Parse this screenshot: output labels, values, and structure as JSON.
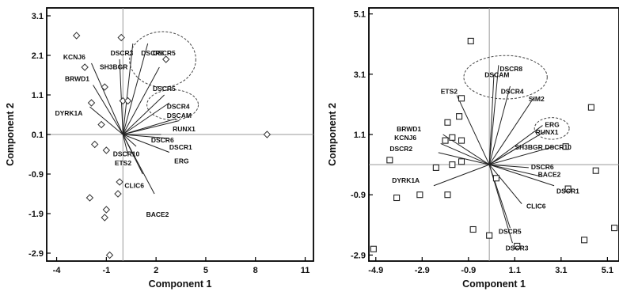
{
  "chart_data": [
    {
      "type": "scatter",
      "xlabel": "Component 1",
      "ylabel": "Component 2",
      "xlim": [
        -4.6,
        11.5
      ],
      "ylim": [
        -3.1,
        3.3
      ],
      "xticks": [
        -4,
        -1,
        2,
        5,
        8,
        11
      ],
      "yticks": [
        -2.9,
        -1.9,
        -0.9,
        0.1,
        1.1,
        2.1,
        3.1
      ],
      "marker": "diamond",
      "reference_lines": {
        "x": 0,
        "y": 0.1
      },
      "points": [
        {
          "x": -2.8,
          "y": 2.6
        },
        {
          "x": -2.3,
          "y": 1.8
        },
        {
          "x": -1.1,
          "y": 1.3
        },
        {
          "x": -1.9,
          "y": 0.9
        },
        {
          "x": -0.1,
          "y": 2.55
        },
        {
          "x": 0,
          "y": 0.95
        },
        {
          "x": 0.3,
          "y": 0.95
        },
        {
          "x": 2.6,
          "y": 2.0
        },
        {
          "x": -1.3,
          "y": 0.35
        },
        {
          "x": -1.7,
          "y": -0.15
        },
        {
          "x": -1.0,
          "y": -0.3
        },
        {
          "x": -2.0,
          "y": -1.5
        },
        {
          "x": -1.0,
          "y": -1.8
        },
        {
          "x": -1.1,
          "y": -2.0
        },
        {
          "x": -0.3,
          "y": -1.4
        },
        {
          "x": -0.2,
          "y": -1.1
        },
        {
          "x": -0.8,
          "y": -2.95
        },
        {
          "x": 8.7,
          "y": 0.1
        }
      ],
      "vectors": [
        {
          "label": "KCNJ6",
          "x": -1.9,
          "y": 1.8
        },
        {
          "label": "BRWD1",
          "x": -1.8,
          "y": 1.25
        },
        {
          "label": "DYRK1A",
          "x": -2.0,
          "y": 0.7
        },
        {
          "label": "SH3BGR",
          "x": -0.2,
          "y": 1.9
        },
        {
          "label": "DSCR3",
          "x": 0.6,
          "y": 2.3
        },
        {
          "label": "DSCR8",
          "x": 1.5,
          "y": 2.3
        },
        {
          "label": "DSCR5",
          "x": 2.2,
          "y": 1.7
        },
        {
          "label": "DSCR4",
          "x": 2.5,
          "y": 1.0
        },
        {
          "label": "DSCAM",
          "x": 2.8,
          "y": 0.8
        },
        {
          "label": "RUNX1",
          "x": 3.2,
          "y": 0.4
        },
        {
          "label": "SIM2",
          "x": 3.4,
          "y": 0.35
        },
        {
          "label": "DSCR6",
          "x": 2.3,
          "y": 0.0
        },
        {
          "label": "DSCR1",
          "x": 2.8,
          "y": -0.1
        },
        {
          "label": "ERG",
          "x": 2.8,
          "y": -0.45
        },
        {
          "label": "DSCR10",
          "x": 0.8,
          "y": -0.3
        },
        {
          "label": "ETS2",
          "x": 0.3,
          "y": -0.5
        },
        {
          "label": "CLIC6",
          "x": 1.2,
          "y": -1.0
        },
        {
          "label": "BACE2",
          "x": 1.9,
          "y": -1.5
        }
      ],
      "labels": [
        {
          "text": "DSCR3",
          "x": -0.75,
          "y": 2.1
        },
        {
          "text": "DSCR8",
          "x": 1.1,
          "y": 2.1
        },
        {
          "text": "DSCR5",
          "x": 1.8,
          "y": 2.1
        },
        {
          "text": "SH3BGR",
          "x": -1.4,
          "y": 1.75
        },
        {
          "text": "KCNJ6",
          "x": -3.6,
          "y": 2.0
        },
        {
          "text": "BRWD1",
          "x": -3.5,
          "y": 1.45
        },
        {
          "text": "DSCR5",
          "x": 1.8,
          "y": 1.2
        },
        {
          "text": "DSCR4",
          "x": 2.65,
          "y": 0.75
        },
        {
          "text": "DSCAM",
          "x": 2.65,
          "y": 0.52
        },
        {
          "text": "DYRK1A",
          "x": -4.1,
          "y": 0.58
        },
        {
          "text": "RUNX1",
          "x": 3.0,
          "y": 0.18
        },
        {
          "text": "DSCR6",
          "x": 1.7,
          "y": -0.1
        },
        {
          "text": "DSCR1",
          "x": 2.8,
          "y": -0.28
        },
        {
          "text": "DSCR10",
          "x": -0.6,
          "y": -0.45
        },
        {
          "text": "ERG",
          "x": 3.1,
          "y": -0.63
        },
        {
          "text": "ETS2",
          "x": -0.5,
          "y": -0.68
        },
        {
          "text": "CLIC6",
          "x": 0.1,
          "y": -1.25
        },
        {
          "text": "BACE2",
          "x": 1.4,
          "y": -1.98
        }
      ],
      "ellipses": [
        {
          "cx": 2.4,
          "cy": 2.0,
          "rx": 2.0,
          "ry": 0.7
        },
        {
          "cx": 3.0,
          "cy": 0.85,
          "rx": 1.55,
          "ry": 0.38
        }
      ]
    },
    {
      "type": "scatter",
      "xlabel": "Component 1",
      "ylabel": "Component 2",
      "xlim": [
        -5.2,
        5.6
      ],
      "ylim": [
        -3.1,
        5.3
      ],
      "xticks": [
        -4.9,
        -2.9,
        -0.9,
        1.1,
        3.1,
        5.1
      ],
      "yticks": [
        -2.9,
        -0.9,
        1.1,
        3.1,
        5.1
      ],
      "marker": "square",
      "reference_lines": {
        "x": 0,
        "y": 0.1
      },
      "points": [
        {
          "x": -0.8,
          "y": 4.2
        },
        {
          "x": -1.2,
          "y": 2.3
        },
        {
          "x": -1.3,
          "y": 1.7
        },
        {
          "x": -1.8,
          "y": 1.5
        },
        {
          "x": -1.6,
          "y": 1.0
        },
        {
          "x": -1.9,
          "y": 0.9
        },
        {
          "x": -1.2,
          "y": 0.9
        },
        {
          "x": -1.2,
          "y": 0.2
        },
        {
          "x": -1.6,
          "y": 0.1
        },
        {
          "x": -2.3,
          "y": 0.0
        },
        {
          "x": -4.3,
          "y": 0.25
        },
        {
          "x": -3.0,
          "y": -0.9
        },
        {
          "x": -4.0,
          "y": -1.0
        },
        {
          "x": -1.8,
          "y": -0.9
        },
        {
          "x": -0.7,
          "y": -2.05
        },
        {
          "x": 0.3,
          "y": -0.35
        },
        {
          "x": 0,
          "y": -2.25
        },
        {
          "x": 1.2,
          "y": -2.6
        },
        {
          "x": 3.3,
          "y": 0.7
        },
        {
          "x": 4.4,
          "y": 2.0
        },
        {
          "x": 4.6,
          "y": -0.1
        },
        {
          "x": 3.4,
          "y": -0.7
        },
        {
          "x": 5.4,
          "y": -2.0
        },
        {
          "x": 4.1,
          "y": -2.4
        },
        {
          "x": -5.0,
          "y": -2.7
        }
      ],
      "vectors": [
        {
          "label": "ETS2",
          "x": -1.4,
          "y": 2.3
        },
        {
          "label": "BRWD1",
          "x": -2.0,
          "y": 1.0
        },
        {
          "label": "KCNJ6",
          "x": -2.1,
          "y": 0.7
        },
        {
          "label": "DSCR2",
          "x": -2.2,
          "y": 0.4
        },
        {
          "label": "DYRK1A",
          "x": -2.4,
          "y": -0.7
        },
        {
          "label": "DSCR8",
          "x": 0.4,
          "y": 3.3
        },
        {
          "label": "DSCAM",
          "x": 0.2,
          "y": 3.0
        },
        {
          "label": "DSCR4",
          "x": 0.9,
          "y": 2.6
        },
        {
          "label": "SIM2",
          "x": 1.9,
          "y": 2.2
        },
        {
          "label": "ERG",
          "x": 2.3,
          "y": 1.3
        },
        {
          "label": "RUNX1",
          "x": 2.4,
          "y": 1.1
        },
        {
          "label": "SH3BGR",
          "x": 1.3,
          "y": 0.6
        },
        {
          "label": "DSCR10",
          "x": 2.8,
          "y": 0.6
        },
        {
          "label": "DSCR6",
          "x": 1.7,
          "y": -0.1
        },
        {
          "label": "BACE2",
          "x": 2.3,
          "y": -0.4
        },
        {
          "label": "DSCR1",
          "x": 2.8,
          "y": -0.7
        },
        {
          "label": "CLIC6",
          "x": 1.4,
          "y": -1.3
        },
        {
          "label": "DSCR5",
          "x": 0.9,
          "y": -2.1
        },
        {
          "label": "DSCR3",
          "x": 1.0,
          "y": -2.6
        }
      ],
      "labels": [
        {
          "text": "ETS2",
          "x": -2.1,
          "y": 2.45
        },
        {
          "text": "DSCR8",
          "x": 0.45,
          "y": 3.2
        },
        {
          "text": "DSCAM",
          "x": -0.2,
          "y": 3.0
        },
        {
          "text": "DSCR4",
          "x": 0.5,
          "y": 2.45
        },
        {
          "text": "SIM2",
          "x": 1.7,
          "y": 2.2
        },
        {
          "text": "BRWD1",
          "x": -4.0,
          "y": 1.2
        },
        {
          "text": "KCNJ6",
          "x": -4.1,
          "y": 0.92
        },
        {
          "text": "DSCR2",
          "x": -4.3,
          "y": 0.55
        },
        {
          "text": "ERG",
          "x": 2.4,
          "y": 1.35
        },
        {
          "text": "RUNX1",
          "x": 2.0,
          "y": 1.1
        },
        {
          "text": "SH3BGR",
          "x": 1.1,
          "y": 0.6
        },
        {
          "text": "DSCR10",
          "x": 2.4,
          "y": 0.6
        },
        {
          "text": "DSCR6",
          "x": 1.8,
          "y": -0.05
        },
        {
          "text": "BACE2",
          "x": 2.1,
          "y": -0.3
        },
        {
          "text": "DYRK1A",
          "x": -4.2,
          "y": -0.5
        },
        {
          "text": "DSCR1",
          "x": 2.9,
          "y": -0.85
        },
        {
          "text": "CLIC6",
          "x": 1.6,
          "y": -1.35
        },
        {
          "text": "DSCR5",
          "x": 0.4,
          "y": -2.2
        },
        {
          "text": "DSCR3",
          "x": 0.7,
          "y": -2.75
        }
      ],
      "ellipses": [
        {
          "cx": 0.7,
          "cy": 3.0,
          "rx": 1.8,
          "ry": 0.72
        },
        {
          "cx": 2.7,
          "cy": 1.3,
          "rx": 0.75,
          "ry": 0.36
        }
      ]
    }
  ]
}
